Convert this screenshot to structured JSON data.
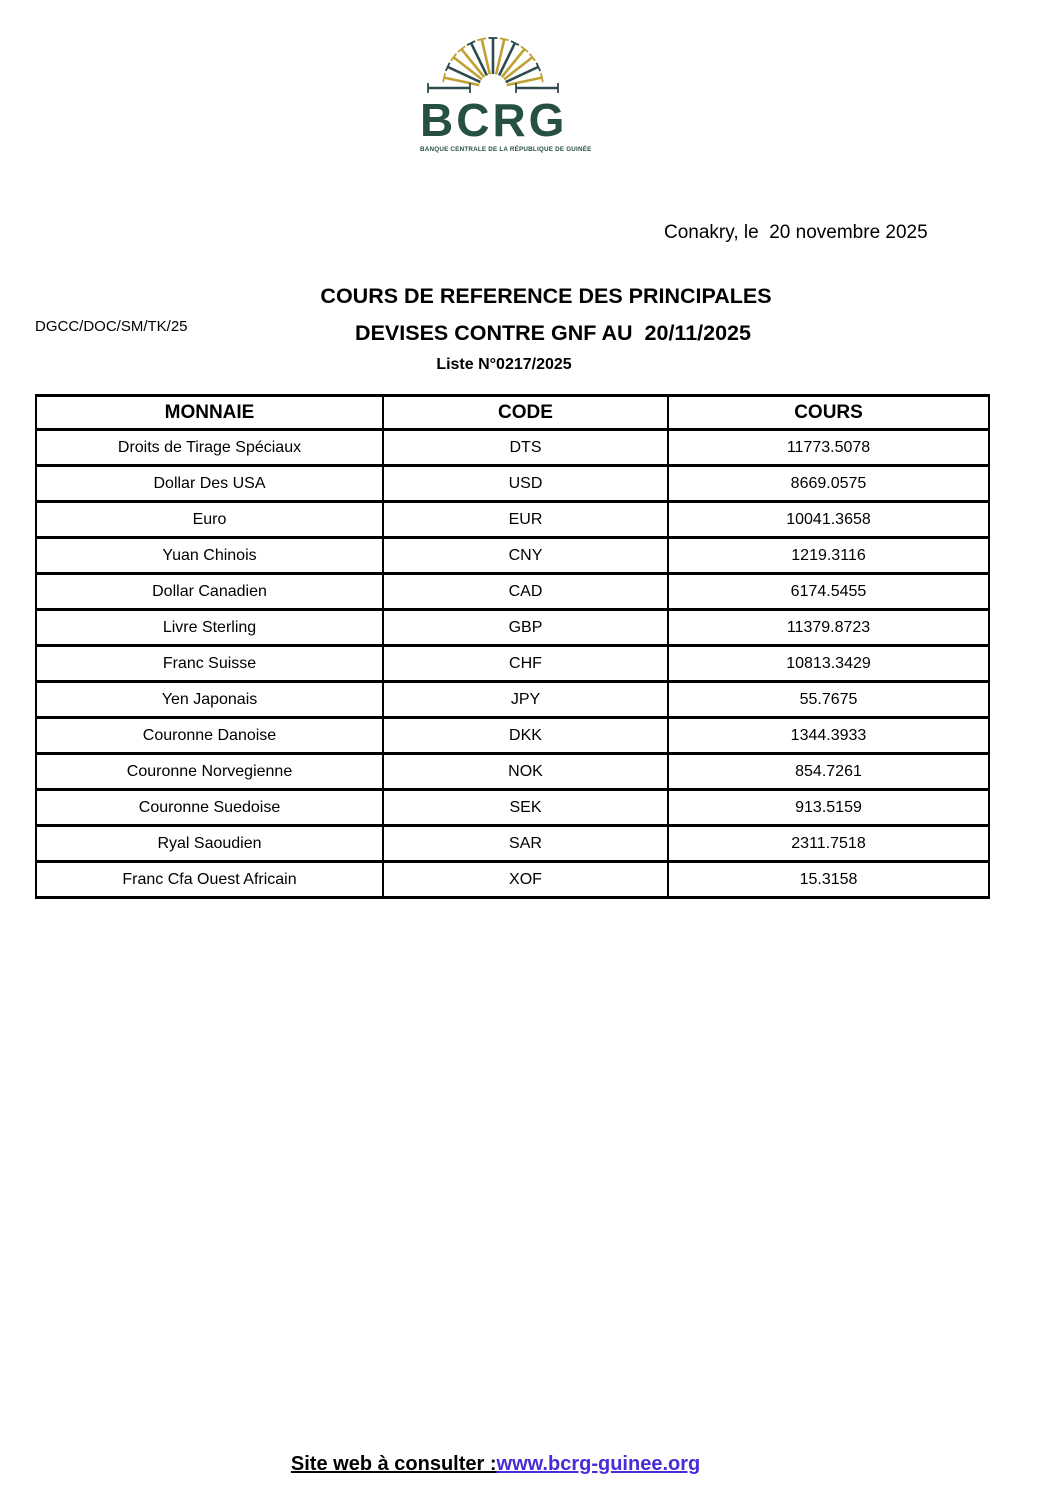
{
  "letterhead": {
    "logo": {
      "acronym": "BCRG",
      "subtitle": "BANQUE CENTRALE DE LA RÉPUBLIQUE DE GUINÉE",
      "green": "#26503f",
      "ray_dark": "#2f4a4e",
      "ray_gold": "#bfa033",
      "ray_pattern": [
        "gold",
        "dark",
        "gold",
        "gold",
        "dark",
        "gold",
        "dark",
        "gold",
        "dark",
        "gold",
        "gold",
        "dark",
        "gold"
      ]
    },
    "date_line": "Conakry, le  20 novembre 2025"
  },
  "doc_ref": "DGCC/DOC/SM/TK/25",
  "title": {
    "line1": "COURS DE REFERENCE DES PRINCIPALES",
    "line2": "DEVISES CONTRE GNF AU  20/11/2025",
    "line3": "Liste N°0217/2025"
  },
  "table": {
    "columns": [
      "MONNAIE",
      "CODE",
      "COURS"
    ],
    "rows": [
      [
        "Droits de Tirage Spéciaux",
        "DTS",
        "11773.5078"
      ],
      [
        "Dollar Des USA",
        "USD",
        "8669.0575"
      ],
      [
        "Euro",
        "EUR",
        "10041.3658"
      ],
      [
        "Yuan Chinois",
        "CNY",
        "1219.3116"
      ],
      [
        "Dollar Canadien",
        "CAD",
        "6174.5455"
      ],
      [
        "Livre Sterling",
        "GBP",
        "11379.8723"
      ],
      [
        "Franc Suisse",
        "CHF",
        "10813.3429"
      ],
      [
        "Yen Japonais",
        "JPY",
        "55.7675"
      ],
      [
        "Couronne Danoise",
        "DKK",
        "1344.3933"
      ],
      [
        "Couronne Norvegienne",
        "NOK",
        "854.7261"
      ],
      [
        "Couronne Suedoise",
        "SEK",
        "913.5159"
      ],
      [
        "Ryal Saoudien",
        "SAR",
        "2311.7518"
      ],
      [
        "Franc Cfa Ouest Africain",
        "XOF",
        "15.3158"
      ]
    ]
  },
  "footer": {
    "label": "Site web à consulter :",
    "link": "www.bcrg-guinee.org",
    "link_color": "#4a2bd6"
  }
}
